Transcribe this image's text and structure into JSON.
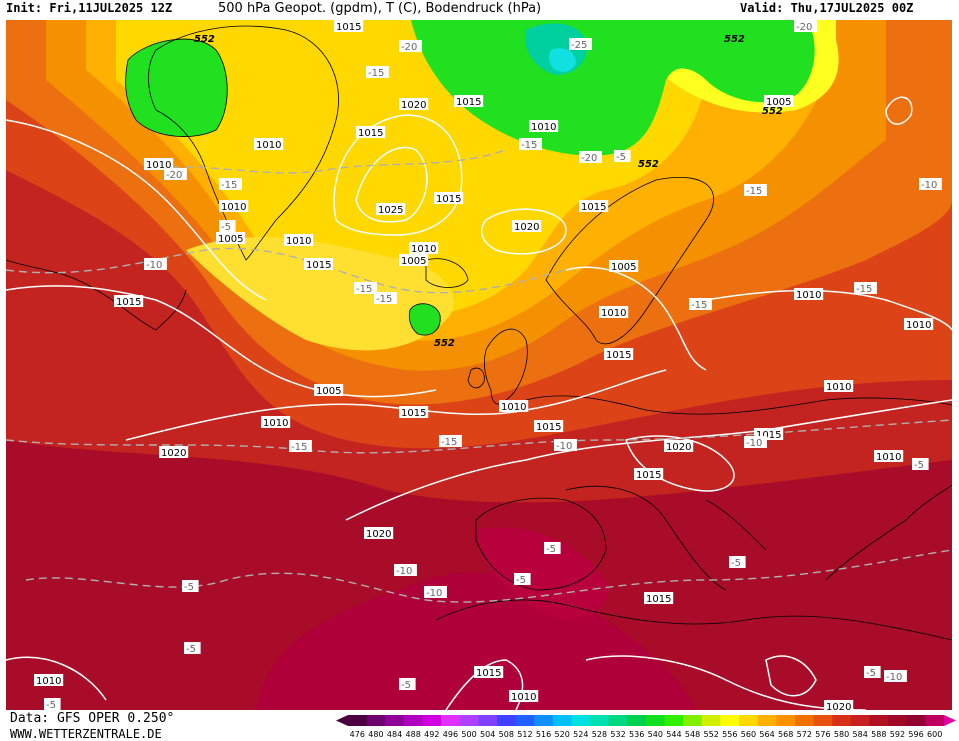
{
  "header": {
    "init": "Init: Fri,11JUL2025 12Z",
    "title": "500 hPa Geopot. (gpdm), T (C), Bodendruck (hPa)",
    "valid": "Valid: Thu,17JUL2025 00Z"
  },
  "footer": {
    "data_source": "Data: GFS OPER 0.250°",
    "site": "WWW.WETTERZENTRALE.DE"
  },
  "colorbar": {
    "values": [
      "476",
      "480",
      "484",
      "488",
      "492",
      "496",
      "500",
      "504",
      "508",
      "512",
      "516",
      "520",
      "524",
      "528",
      "532",
      "536",
      "540",
      "544",
      "548",
      "552",
      "556",
      "560",
      "564",
      "568",
      "572",
      "576",
      "580",
      "584",
      "588",
      "592",
      "596",
      "600"
    ],
    "colors": [
      "#4b0040",
      "#6e0070",
      "#8f0098",
      "#b000c0",
      "#d000e0",
      "#e030ff",
      "#b040ff",
      "#8040ff",
      "#4040ff",
      "#2060ff",
      "#1090ff",
      "#00c0ff",
      "#00e0e0",
      "#00e0b0",
      "#00d880",
      "#00d050",
      "#10e020",
      "#30f000",
      "#80f000",
      "#d0f000",
      "#ffff00",
      "#ffd800",
      "#ffb000",
      "#ff9000",
      "#f07000",
      "#e85010",
      "#d83018",
      "#c82020",
      "#b01020",
      "#a00828",
      "#900030",
      "#c00060"
    ],
    "arrow_left_color": "#4b0040",
    "arrow_right_color": "#e000a0"
  },
  "pressure_labels": [
    {
      "text": "1015",
      "id": "p1"
    },
    {
      "text": "1020",
      "id": "p2"
    },
    {
      "text": "1015",
      "id": "p3"
    },
    {
      "text": "1010",
      "id": "p4"
    },
    {
      "text": "1015",
      "id": "p5"
    },
    {
      "text": "1010",
      "id": "p6"
    },
    {
      "text": "1015",
      "id": "p7"
    },
    {
      "text": "1010",
      "id": "p8"
    },
    {
      "text": "1005",
      "id": "p9"
    },
    {
      "text": "1025",
      "id": "p10"
    },
    {
      "text": "1015",
      "id": "p11"
    },
    {
      "text": "1010",
      "id": "p12"
    },
    {
      "text": "1015",
      "id": "p13"
    },
    {
      "text": "1020",
      "id": "p14"
    },
    {
      "text": "1010",
      "id": "p15"
    },
    {
      "text": "1015",
      "id": "p16"
    },
    {
      "text": "1005",
      "id": "p17"
    },
    {
      "text": "1010",
      "id": "p18"
    },
    {
      "text": "1015",
      "id": "p19"
    },
    {
      "text": "1005",
      "id": "p20"
    },
    {
      "text": "1010",
      "id": "p21"
    },
    {
      "text": "1015",
      "id": "p22"
    },
    {
      "text": "1010",
      "id": "p23"
    },
    {
      "text": "1020",
      "id": "p24"
    },
    {
      "text": "1020",
      "id": "p25"
    },
    {
      "text": "1015",
      "id": "p26"
    },
    {
      "text": "1015",
      "id": "p27"
    },
    {
      "text": "1010",
      "id": "p28"
    },
    {
      "text": "1010",
      "id": "p29"
    },
    {
      "text": "1005",
      "id": "p30"
    },
    {
      "text": "1010",
      "id": "p31"
    },
    {
      "text": "1010",
      "id": "p32"
    },
    {
      "text": "1015",
      "id": "p33"
    },
    {
      "text": "1020",
      "id": "p34"
    },
    {
      "text": "1015",
      "id": "p35"
    },
    {
      "text": "1015",
      "id": "p36"
    },
    {
      "text": "1010",
      "id": "p37"
    },
    {
      "text": "1010",
      "id": "p38"
    },
    {
      "text": "1020",
      "id": "p39"
    },
    {
      "text": "1010",
      "id": "p40"
    },
    {
      "text": "1005",
      "id": "p41"
    }
  ],
  "temp_labels": [
    {
      "text": "-20"
    },
    {
      "text": "-25"
    },
    {
      "text": "-20"
    },
    {
      "text": "-15"
    },
    {
      "text": "-15"
    },
    {
      "text": "-20"
    },
    {
      "text": "-15"
    },
    {
      "text": "-20"
    },
    {
      "text": "-15"
    },
    {
      "text": "-15"
    },
    {
      "text": "-15"
    },
    {
      "text": "-10"
    },
    {
      "text": "-15"
    },
    {
      "text": "-15"
    },
    {
      "text": "-15"
    },
    {
      "text": "-10"
    },
    {
      "text": "-10"
    },
    {
      "text": "-15"
    },
    {
      "text": "-10"
    },
    {
      "text": "-10"
    },
    {
      "text": "-5"
    },
    {
      "text": "-5"
    },
    {
      "text": "-5"
    },
    {
      "text": "-10"
    },
    {
      "text": "-5"
    },
    {
      "text": "-5"
    },
    {
      "text": "-5"
    },
    {
      "text": "-5"
    },
    {
      "text": "-5"
    },
    {
      "text": "-5"
    },
    {
      "text": "-10"
    },
    {
      "text": "-5"
    },
    {
      "text": "-5"
    }
  ],
  "geopot_labels": [
    {
      "text": "552"
    },
    {
      "text": "552"
    },
    {
      "text": "552"
    },
    {
      "text": "552"
    },
    {
      "text": "552"
    }
  ]
}
